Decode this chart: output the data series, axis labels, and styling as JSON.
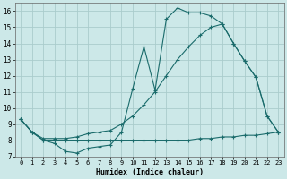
{
  "xlabel": "Humidex (Indice chaleur)",
  "xlim": [
    -0.5,
    23.5
  ],
  "ylim": [
    7,
    16.5
  ],
  "xticks": [
    0,
    1,
    2,
    3,
    4,
    5,
    6,
    7,
    8,
    9,
    10,
    11,
    12,
    13,
    14,
    15,
    16,
    17,
    18,
    19,
    20,
    21,
    22,
    23
  ],
  "yticks": [
    7,
    8,
    9,
    10,
    11,
    12,
    13,
    14,
    15,
    16
  ],
  "bg_color": "#cce8e8",
  "grid_color": "#aacccc",
  "line_color": "#1a6b6b",
  "series1_x": [
    0,
    1,
    2,
    3,
    4,
    5,
    6,
    7,
    8,
    9,
    10,
    11,
    12,
    13,
    14,
    15,
    16,
    17,
    18,
    19,
    20,
    21,
    22,
    23
  ],
  "series1_y": [
    9.3,
    8.5,
    8.0,
    7.8,
    7.3,
    7.2,
    7.5,
    7.6,
    7.7,
    8.5,
    11.2,
    13.8,
    11.1,
    15.5,
    16.2,
    15.9,
    15.9,
    15.7,
    15.2,
    14.0,
    12.9,
    11.9,
    9.5,
    8.5
  ],
  "series2_x": [
    0,
    1,
    2,
    3,
    4,
    5,
    6,
    7,
    8,
    9,
    10,
    11,
    12,
    13,
    14,
    15,
    16,
    17,
    18,
    19,
    20,
    21,
    22,
    23
  ],
  "series2_y": [
    9.3,
    8.5,
    8.1,
    8.1,
    8.1,
    8.2,
    8.4,
    8.5,
    8.6,
    9.0,
    9.5,
    10.2,
    11.0,
    12.0,
    13.0,
    13.8,
    14.5,
    15.0,
    15.2,
    14.0,
    12.9,
    11.9,
    9.5,
    8.5
  ],
  "series3_x": [
    0,
    1,
    2,
    3,
    4,
    5,
    6,
    7,
    8,
    9,
    10,
    11,
    12,
    13,
    14,
    15,
    16,
    17,
    18,
    19,
    20,
    21,
    22,
    23
  ],
  "series3_y": [
    9.3,
    8.5,
    8.0,
    8.0,
    8.0,
    8.0,
    8.0,
    8.0,
    8.0,
    8.0,
    8.0,
    8.0,
    8.0,
    8.0,
    8.0,
    8.0,
    8.1,
    8.1,
    8.2,
    8.2,
    8.3,
    8.3,
    8.4,
    8.5
  ]
}
